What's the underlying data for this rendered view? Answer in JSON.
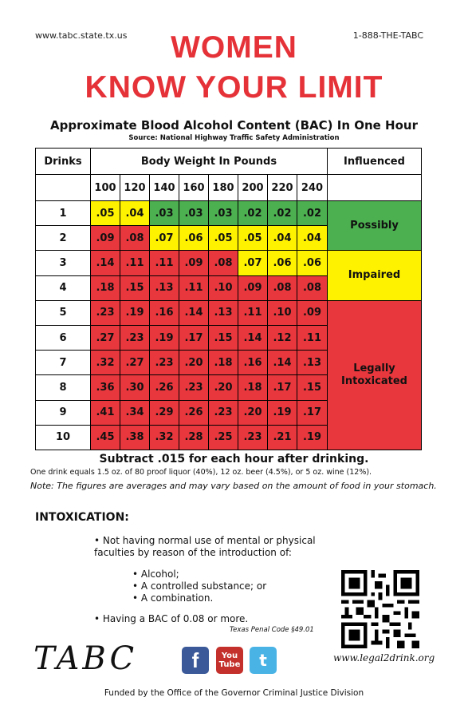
{
  "header": {
    "url": "www.tabc.state.tx.us",
    "phone": "1-888-THE-TABC",
    "title_line1": "WOMEN",
    "title_line2": "KNOW YOUR LIMIT"
  },
  "subtitle": "Approximate Blood Alcohol Content (BAC) In One Hour",
  "source": "Source: National Highway Traffic Safety Administration",
  "table": {
    "drinks_header": "Drinks",
    "weight_header": "Body Weight In Pounds",
    "influenced_header": "Influenced",
    "weights": [
      "100",
      "120",
      "140",
      "160",
      "180",
      "200",
      "220",
      "240"
    ],
    "rows": [
      {
        "drinks": "1",
        "values": [
          ".05",
          ".04",
          ".03",
          ".03",
          ".03",
          ".02",
          ".02",
          ".02"
        ],
        "colors": [
          "y",
          "y",
          "g",
          "g",
          "g",
          "g",
          "g",
          "g"
        ]
      },
      {
        "drinks": "2",
        "values": [
          ".09",
          ".08",
          ".07",
          ".06",
          ".05",
          ".05",
          ".04",
          ".04"
        ],
        "colors": [
          "r",
          "r",
          "y",
          "y",
          "y",
          "y",
          "y",
          "y"
        ]
      },
      {
        "drinks": "3",
        "values": [
          ".14",
          ".11",
          ".11",
          ".09",
          ".08",
          ".07",
          ".06",
          ".06"
        ],
        "colors": [
          "r",
          "r",
          "r",
          "r",
          "r",
          "y",
          "y",
          "y"
        ]
      },
      {
        "drinks": "4",
        "values": [
          ".18",
          ".15",
          ".13",
          ".11",
          ".10",
          ".09",
          ".08",
          ".08"
        ],
        "colors": [
          "r",
          "r",
          "r",
          "r",
          "r",
          "r",
          "r",
          "r"
        ]
      },
      {
        "drinks": "5",
        "values": [
          ".23",
          ".19",
          ".16",
          ".14",
          ".13",
          ".11",
          ".10",
          ".09"
        ],
        "colors": [
          "r",
          "r",
          "r",
          "r",
          "r",
          "r",
          "r",
          "r"
        ]
      },
      {
        "drinks": "6",
        "values": [
          ".27",
          ".23",
          ".19",
          ".17",
          ".15",
          ".14",
          ".12",
          ".11"
        ],
        "colors": [
          "r",
          "r",
          "r",
          "r",
          "r",
          "r",
          "r",
          "r"
        ]
      },
      {
        "drinks": "7",
        "values": [
          ".32",
          ".27",
          ".23",
          ".20",
          ".18",
          ".16",
          ".14",
          ".13"
        ],
        "colors": [
          "r",
          "r",
          "r",
          "r",
          "r",
          "r",
          "r",
          "r"
        ]
      },
      {
        "drinks": "8",
        "values": [
          ".36",
          ".30",
          ".26",
          ".23",
          ".20",
          ".18",
          ".17",
          ".15"
        ],
        "colors": [
          "r",
          "r",
          "r",
          "r",
          "r",
          "r",
          "r",
          "r"
        ]
      },
      {
        "drinks": "9",
        "values": [
          ".41",
          ".34",
          ".29",
          ".26",
          ".23",
          ".20",
          ".19",
          ".17"
        ],
        "colors": [
          "r",
          "r",
          "r",
          "r",
          "r",
          "r",
          "r",
          "r"
        ]
      },
      {
        "drinks": "10",
        "values": [
          ".45",
          ".38",
          ".32",
          ".28",
          ".25",
          ".23",
          ".21",
          ".19"
        ],
        "colors": [
          "r",
          "r",
          "r",
          "r",
          "r",
          "r",
          "r",
          "r"
        ]
      }
    ],
    "influence": [
      {
        "label": "Possibly",
        "color": "#4caf50",
        "rows": [
          1,
          2
        ]
      },
      {
        "label": "Impaired",
        "color": "#fff200",
        "rows": [
          3,
          4
        ]
      },
      {
        "label": "Legally Intoxicated",
        "color": "#e8373d",
        "rows": [
          5,
          10
        ]
      }
    ],
    "colors": {
      "g": "#4caf50",
      "y": "#fff200",
      "r": "#e8373d"
    }
  },
  "subtract_text": "Subtract .015 for each hour after drinking.",
  "one_drink_text": "One drink equals 1.5 oz. of 80 proof liquor (40%), 12 oz. beer (4.5%), or 5 oz. wine (12%).",
  "note_text": "Note: The figures are averages and may vary based on the amount of food in your stomach.",
  "intoxication": {
    "heading": "INTOXICATION:",
    "bullet1": "• Not having normal use of mental or physical faculties by reason of the introduction of:",
    "sub_items": [
      "• Alcohol;",
      "• A controlled substance; or",
      "• A combination."
    ],
    "bullet2": "• Having a BAC of 0.08 or more.",
    "citation": "Texas Penal Code §49.01"
  },
  "website": "www.legal2drink.org",
  "logo_text": "TABC",
  "social": {
    "facebook": "f",
    "youtube_top": "You",
    "youtube_bottom": "Tube",
    "twitter": "t"
  },
  "footer": "Funded by the Office of the Governor Criminal Justice Division"
}
